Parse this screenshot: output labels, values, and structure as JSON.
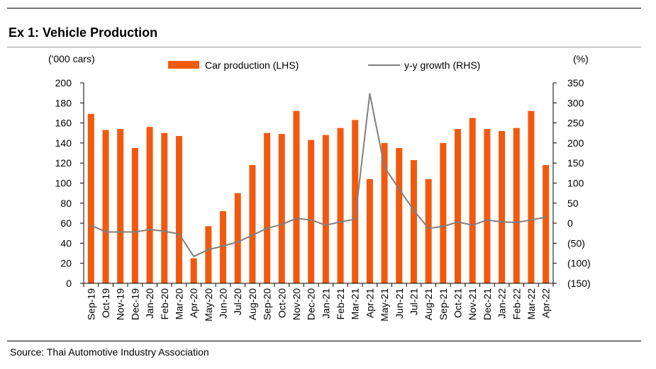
{
  "header": {
    "title": "Ex 1: Vehicle Production"
  },
  "footer": {
    "source": "Source: Thai Automotive Industry Association"
  },
  "chart_data": {
    "type": "bar",
    "title": "",
    "left_unit": "('000 cars)",
    "right_unit": "(%)",
    "categories": [
      "Sep-19",
      "Oct-19",
      "Nov-19",
      "Dec-19",
      "Jan-20",
      "Feb-20",
      "Mar-20",
      "Apr-20",
      "May-20",
      "Jun-20",
      "Jul-20",
      "Aug-20",
      "Sep-20",
      "Oct-20",
      "Nov-20",
      "Dec-20",
      "Jan-21",
      "Feb-21",
      "Mar-21",
      "Apr-21",
      "May-21",
      "Jun-21",
      "Jul-21",
      "Aug-21",
      "Sep-21",
      "Oct-21",
      "Nov-21",
      "Dec-21",
      "Jan-22",
      "Feb-22",
      "Mar-22",
      "Apr-22"
    ],
    "series": [
      {
        "name": "Car production (LHS)",
        "type": "bar",
        "axis": "left",
        "color": "#f15a0e",
        "values": [
          169,
          153,
          154,
          135,
          156,
          150,
          147,
          25,
          57,
          72,
          90,
          118,
          150,
          149,
          172,
          143,
          148,
          155,
          163,
          104,
          140,
          135,
          123,
          104,
          140,
          154,
          165,
          154,
          152,
          155,
          172,
          118
        ]
      },
      {
        "name": "y-y growth (RHS)",
        "type": "line",
        "axis": "right",
        "color": "#7f7f7f",
        "values": [
          -5,
          -22,
          -22,
          -22,
          -16,
          -20,
          -27,
          -83,
          -66,
          -57,
          -47,
          -30,
          -13,
          -3,
          12,
          8,
          -5,
          3,
          10,
          323,
          140,
          85,
          32,
          -13,
          -8,
          3,
          -5,
          8,
          3,
          2,
          8,
          15
        ]
      }
    ],
    "y_left": {
      "range": [
        0,
        200
      ],
      "ticks": [
        "0",
        "20",
        "40",
        "60",
        "80",
        "100",
        "120",
        "140",
        "160",
        "180",
        "200"
      ]
    },
    "y_right": {
      "range": [
        -150,
        350
      ],
      "ticks": [
        "(150)",
        "(100)",
        "(50)",
        "0",
        "50",
        "100",
        "150",
        "200",
        "250",
        "300",
        "350"
      ]
    },
    "legend_position": "top",
    "grid": false
  }
}
